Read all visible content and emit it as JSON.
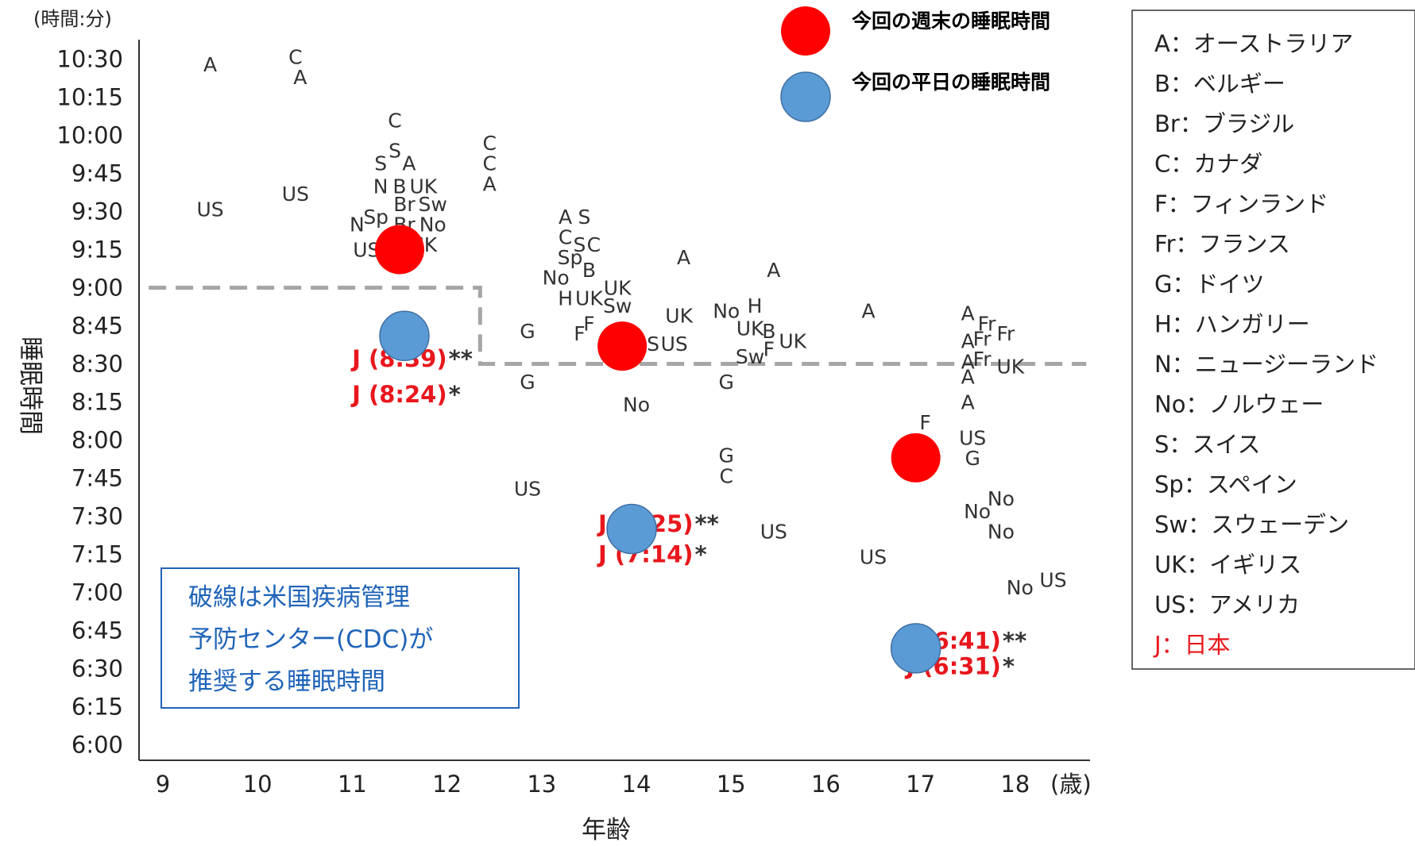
{
  "chart_data": {
    "type": "scatter",
    "unit_label": "(時間:分)",
    "xlabel": "年齢",
    "ylabel": "睡眠時間",
    "x_unit": "(歳)",
    "xlim": [
      8.75,
      18.75
    ],
    "ylim": [
      360,
      640
    ],
    "x_ticks": [
      "9",
      "10",
      "11",
      "12",
      "13",
      "14",
      "15",
      "16",
      "17",
      "18"
    ],
    "y_ticks": [
      "6:00",
      "6:15",
      "6:30",
      "6:45",
      "7:00",
      "7:15",
      "7:30",
      "7:45",
      "8:00",
      "8:15",
      "8:30",
      "8:45",
      "9:00",
      "9:15",
      "9:30",
      "9:45",
      "10:00",
      "10:15",
      "10:30"
    ],
    "grid": false,
    "legend_position": "top-right",
    "series": [
      {
        "name": "今回の週末の睡眠時間",
        "color": "#ff0000",
        "points": [
          {
            "x": 11.5,
            "y": 555
          },
          {
            "x": 13.85,
            "y": 517
          },
          {
            "x": 16.95,
            "y": 473
          }
        ]
      },
      {
        "name": "今回の平日の睡眠時間",
        "color": "#5b9bd5",
        "points": [
          {
            "x": 11.55,
            "y": 521
          },
          {
            "x": 13.95,
            "y": 445
          },
          {
            "x": 16.95,
            "y": 398
          }
        ]
      }
    ],
    "country_points": [
      {
        "label": "A",
        "x": 9.5,
        "y": 628
      },
      {
        "label": "C",
        "x": 10.4,
        "y": 631
      },
      {
        "label": "A",
        "x": 10.45,
        "y": 623
      },
      {
        "label": "US",
        "x": 9.5,
        "y": 571
      },
      {
        "label": "US",
        "x": 10.4,
        "y": 577
      },
      {
        "label": "C",
        "x": 11.45,
        "y": 606
      },
      {
        "label": "S",
        "x": 11.45,
        "y": 594
      },
      {
        "label": "S",
        "x": 11.3,
        "y": 589
      },
      {
        "label": "A",
        "x": 11.6,
        "y": 589
      },
      {
        "label": "N",
        "x": 11.3,
        "y": 580
      },
      {
        "label": "B",
        "x": 11.5,
        "y": 580
      },
      {
        "label": "UK",
        "x": 11.75,
        "y": 580
      },
      {
        "label": "Br",
        "x": 11.55,
        "y": 573
      },
      {
        "label": "Sw",
        "x": 11.85,
        "y": 573
      },
      {
        "label": "N",
        "x": 11.05,
        "y": 565
      },
      {
        "label": "Sp",
        "x": 11.25,
        "y": 568
      },
      {
        "label": "Br",
        "x": 11.55,
        "y": 565
      },
      {
        "label": "No",
        "x": 11.85,
        "y": 565
      },
      {
        "label": "US",
        "x": 11.15,
        "y": 555
      },
      {
        "label": "UK",
        "x": 11.75,
        "y": 557
      },
      {
        "label": "C",
        "x": 12.45,
        "y": 597
      },
      {
        "label": "C",
        "x": 12.45,
        "y": 589
      },
      {
        "label": "A",
        "x": 12.45,
        "y": 581
      },
      {
        "label": "A",
        "x": 13.25,
        "y": 568
      },
      {
        "label": "S",
        "x": 13.45,
        "y": 568
      },
      {
        "label": "C",
        "x": 13.25,
        "y": 560
      },
      {
        "label": "S",
        "x": 13.4,
        "y": 557
      },
      {
        "label": "C",
        "x": 13.55,
        "y": 557
      },
      {
        "label": "Sp",
        "x": 13.3,
        "y": 552
      },
      {
        "label": "B",
        "x": 13.5,
        "y": 547
      },
      {
        "label": "No",
        "x": 13.15,
        "y": 544
      },
      {
        "label": "H",
        "x": 13.25,
        "y": 536
      },
      {
        "label": "UK",
        "x": 13.5,
        "y": 536
      },
      {
        "label": "UK",
        "x": 13.8,
        "y": 540
      },
      {
        "label": "Sw",
        "x": 13.8,
        "y": 533
      },
      {
        "label": "F",
        "x": 13.5,
        "y": 526
      },
      {
        "label": "F",
        "x": 13.4,
        "y": 522
      },
      {
        "label": "G",
        "x": 12.85,
        "y": 523
      },
      {
        "label": "A",
        "x": 14.5,
        "y": 552
      },
      {
        "label": "UK",
        "x": 14.45,
        "y": 529
      },
      {
        "label": "No",
        "x": 14.95,
        "y": 531
      },
      {
        "label": "H",
        "x": 15.25,
        "y": 533
      },
      {
        "label": "UK",
        "x": 15.2,
        "y": 524
      },
      {
        "label": "B",
        "x": 15.4,
        "y": 523
      },
      {
        "label": "A",
        "x": 15.45,
        "y": 547
      },
      {
        "label": "US",
        "x": 14.1,
        "y": 518
      },
      {
        "label": "US",
        "x": 14.4,
        "y": 518
      },
      {
        "label": "Sw",
        "x": 15.2,
        "y": 513
      },
      {
        "label": "F",
        "x": 15.4,
        "y": 516
      },
      {
        "label": "UK",
        "x": 15.65,
        "y": 519
      },
      {
        "label": "G",
        "x": 12.85,
        "y": 503
      },
      {
        "label": "G",
        "x": 14.95,
        "y": 503
      },
      {
        "label": "No",
        "x": 14.0,
        "y": 494
      },
      {
        "label": "A",
        "x": 16.45,
        "y": 531
      },
      {
        "label": "A",
        "x": 17.5,
        "y": 530
      },
      {
        "label": "Fr",
        "x": 17.7,
        "y": 526
      },
      {
        "label": "A",
        "x": 17.5,
        "y": 519
      },
      {
        "label": "Fr",
        "x": 17.65,
        "y": 520
      },
      {
        "label": "Fr",
        "x": 17.9,
        "y": 522
      },
      {
        "label": "A",
        "x": 17.5,
        "y": 511
      },
      {
        "label": "Fr",
        "x": 17.65,
        "y": 512
      },
      {
        "label": "UK",
        "x": 17.95,
        "y": 509
      },
      {
        "label": "A",
        "x": 17.5,
        "y": 505
      },
      {
        "label": "A",
        "x": 17.5,
        "y": 495
      },
      {
        "label": "F",
        "x": 17.05,
        "y": 487
      },
      {
        "label": "US",
        "x": 17.55,
        "y": 481
      },
      {
        "label": "G",
        "x": 17.55,
        "y": 473
      },
      {
        "label": "G",
        "x": 14.95,
        "y": 474
      },
      {
        "label": "C",
        "x": 14.95,
        "y": 466
      },
      {
        "label": "US",
        "x": 12.85,
        "y": 461
      },
      {
        "label": "US",
        "x": 15.45,
        "y": 444
      },
      {
        "label": "US",
        "x": 16.5,
        "y": 434
      },
      {
        "label": "No",
        "x": 17.85,
        "y": 457
      },
      {
        "label": "No",
        "x": 17.6,
        "y": 452
      },
      {
        "label": "No",
        "x": 17.85,
        "y": 444
      },
      {
        "label": "US",
        "x": 18.4,
        "y": 425
      },
      {
        "label": "No",
        "x": 18.05,
        "y": 422
      }
    ],
    "japan_labels": [
      {
        "text": "J (8:39)",
        "mark": "**",
        "x": 12.0,
        "y": 512
      },
      {
        "text": "J (8:24)",
        "mark": "*",
        "x": 12.0,
        "y": 498
      },
      {
        "text": "J (7:25)",
        "mark": "**",
        "x": 14.6,
        "y": 447
      },
      {
        "text": "J (7:14)",
        "mark": "*",
        "x": 14.6,
        "y": 435
      },
      {
        "text": "J (6:41)",
        "mark": "**",
        "x": 17.85,
        "y": 401
      },
      {
        "text": "J (6:31)",
        "mark": "*",
        "x": 17.85,
        "y": 391
      }
    ],
    "cdc_recommendation": [
      {
        "x_from": 8.85,
        "x_to": 12.35,
        "y": 540
      },
      {
        "x_from": 12.35,
        "x_to": 18.75,
        "y": 510
      }
    ],
    "annotation": [
      "破線は米国疾病管理",
      "予防センター(CDC)が",
      "推奨する睡眠時間"
    ],
    "country_legend": [
      {
        "code": "A",
        "name": "オーストラリア"
      },
      {
        "code": "B",
        "name": "ベルギー"
      },
      {
        "code": "Br",
        "name": "ブラジル"
      },
      {
        "code": "C",
        "name": "カナダ"
      },
      {
        "code": "F",
        "name": "フィンランド"
      },
      {
        "code": "Fr",
        "name": "フランス"
      },
      {
        "code": "G",
        "name": "ドイツ"
      },
      {
        "code": "H",
        "name": "ハンガリー"
      },
      {
        "code": "N",
        "name": "ニュージーランド"
      },
      {
        "code": "No",
        "name": "ノルウェー"
      },
      {
        "code": "S",
        "name": "スイス"
      },
      {
        "code": "Sp",
        "name": "スペイン"
      },
      {
        "code": "Sw",
        "name": "スウェーデン"
      },
      {
        "code": "UK",
        "name": "イギリス"
      },
      {
        "code": "US",
        "name": "アメリカ"
      },
      {
        "code": "J",
        "name": "日本",
        "color": "#e8171d"
      }
    ]
  }
}
